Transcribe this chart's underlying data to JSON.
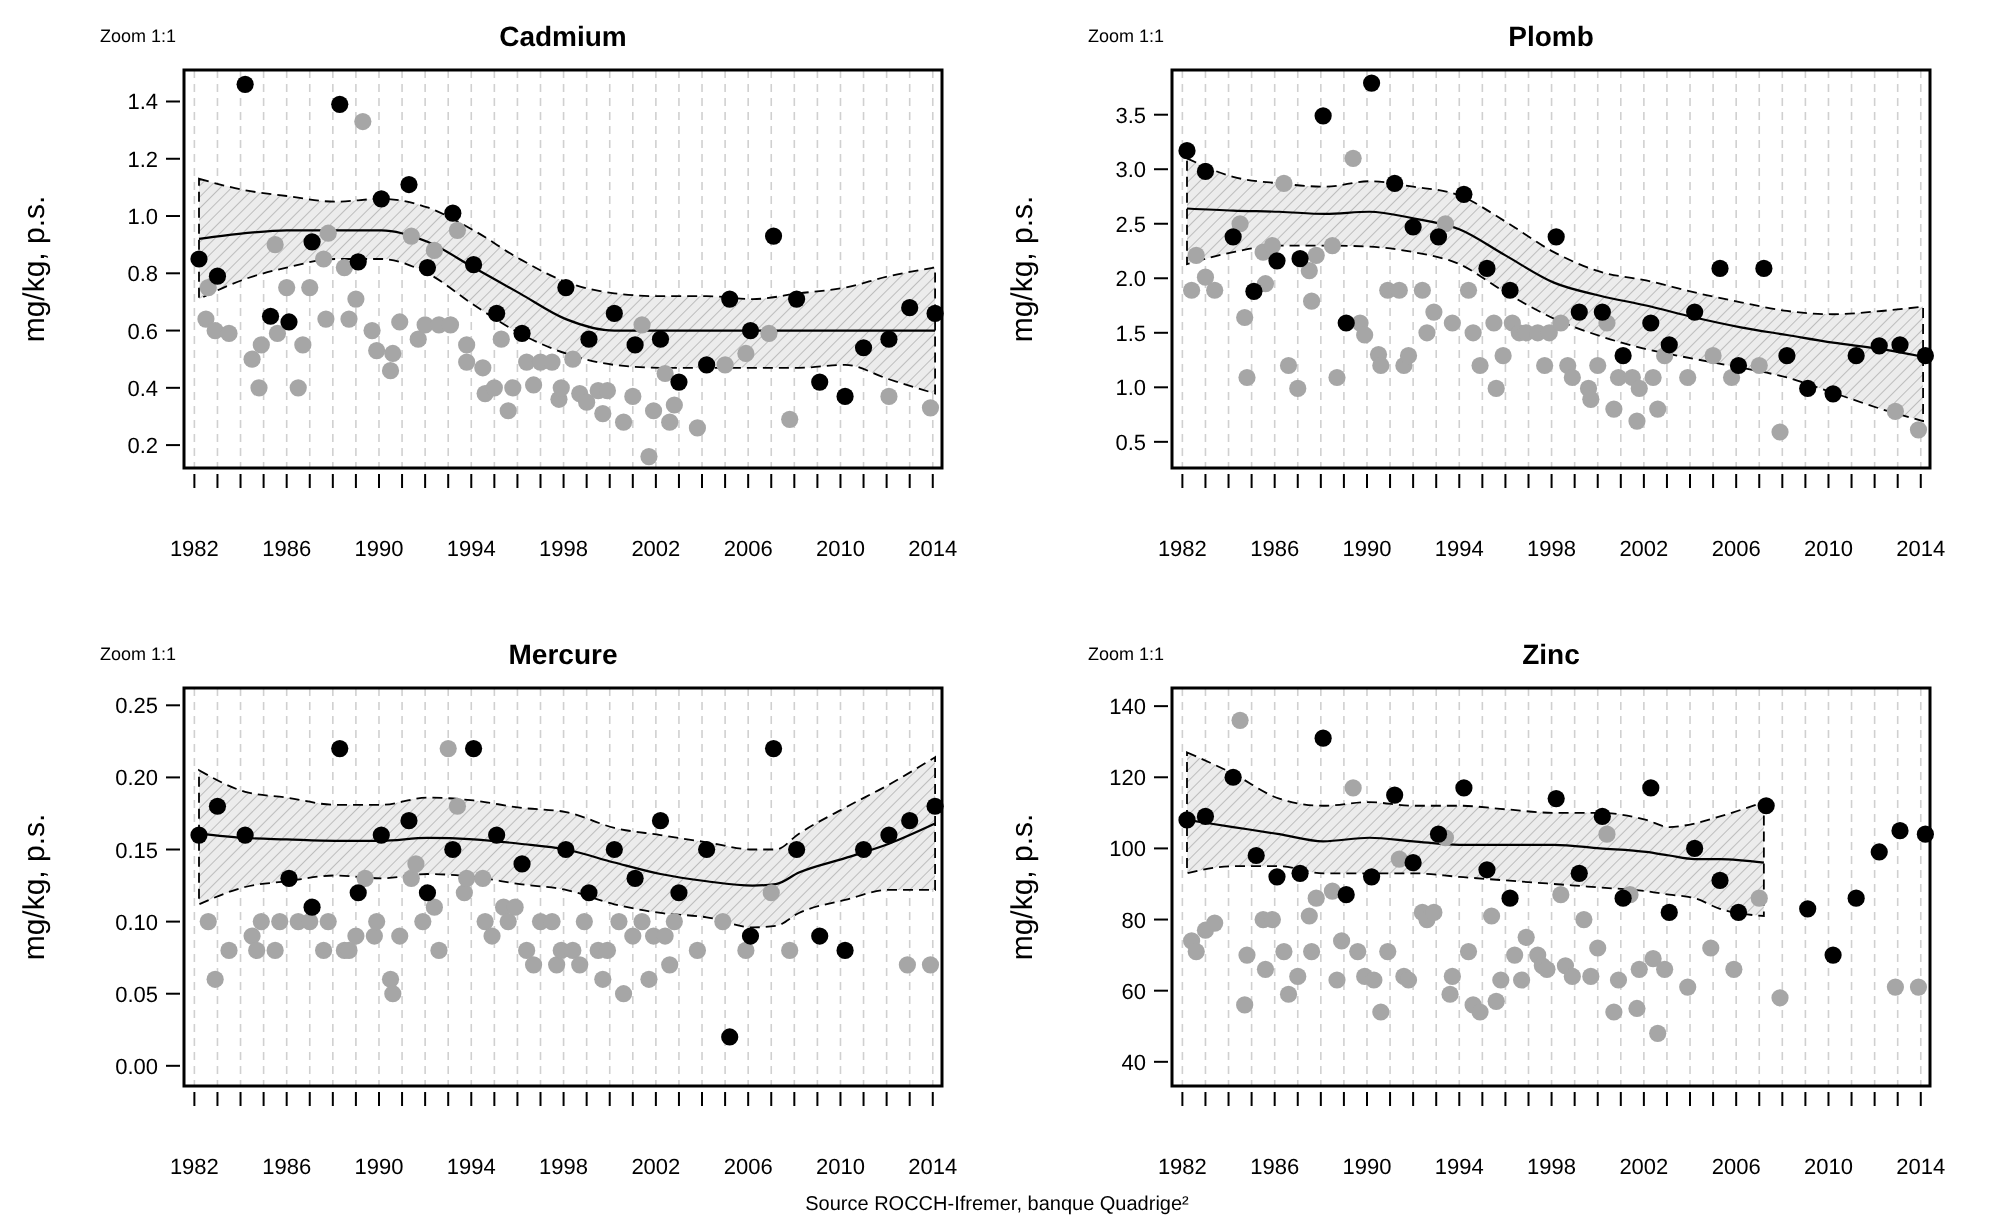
{
  "chart_data": [
    {
      "type": "scatter",
      "title": "Cadmium",
      "ylabel": "mg/kg, p.s.",
      "annotations": [
        "Zoom 1:1"
      ],
      "xlim": [
        1981.55,
        2014.4
      ],
      "ylim": [
        0.12,
        1.51
      ],
      "grid": "x",
      "marker": "circle",
      "xticks": [
        {
          "value": 1982,
          "label": "1982"
        },
        {
          "value": 1983,
          "label": null
        },
        {
          "value": 1984,
          "label": null
        },
        {
          "value": 1985,
          "label": null
        },
        {
          "value": 1986,
          "label": "1986"
        },
        {
          "value": 1987,
          "label": null
        },
        {
          "value": 1988,
          "label": null
        },
        {
          "value": 1989,
          "label": null
        },
        {
          "value": 1990,
          "label": "1990"
        },
        {
          "value": 1991,
          "label": null
        },
        {
          "value": 1992,
          "label": null
        },
        {
          "value": 1993,
          "label": null
        },
        {
          "value": 1994,
          "label": "1994"
        },
        {
          "value": 1995,
          "label": null
        },
        {
          "value": 1996,
          "label": null
        },
        {
          "value": 1997,
          "label": null
        },
        {
          "value": 1998,
          "label": "1998"
        },
        {
          "value": 1999,
          "label": null
        },
        {
          "value": 2000,
          "label": null
        },
        {
          "value": 2001,
          "label": null
        },
        {
          "value": 2002,
          "label": "2002"
        },
        {
          "value": 2003,
          "label": null
        },
        {
          "value": 2004,
          "label": null
        },
        {
          "value": 2005,
          "label": null
        },
        {
          "value": 2006,
          "label": "2006"
        },
        {
          "value": 2007,
          "label": null
        },
        {
          "value": 2008,
          "label": null
        },
        {
          "value": 2009,
          "label": null
        },
        {
          "value": 2010,
          "label": "2010"
        },
        {
          "value": 2011,
          "label": null
        },
        {
          "value": 2012,
          "label": null
        },
        {
          "value": 2013,
          "label": null
        },
        {
          "value": 2014,
          "label": "2014"
        }
      ],
      "yticks": [
        {
          "value": 0.2,
          "label": "0.2"
        },
        {
          "value": 0.4,
          "label": "0.4"
        },
        {
          "value": 0.6,
          "label": "0.6"
        },
        {
          "value": 0.8,
          "label": "0.8"
        },
        {
          "value": 1,
          "label": "1.0"
        },
        {
          "value": 1.2,
          "label": "1.2"
        },
        {
          "value": 1.4,
          "label": "1.4"
        }
      ],
      "series": [
        {
          "type": "line",
          "marker": "none",
          "color": "#000000",
          "x": [
            1982.2,
            1984.2,
            1986.0,
            1988.1,
            1990.1,
            1992.1,
            1994.1,
            1996.1,
            1998.1,
            2000.2,
            2002.2,
            2004.2,
            2006.2,
            2008.2,
            2010.2,
            2012.1,
            2014.1
          ],
          "values": [
            0.92,
            0.94,
            0.95,
            0.95,
            0.95,
            0.91,
            0.82,
            0.73,
            0.64,
            0.6,
            0.6,
            0.6,
            0.6,
            0.6,
            0.6,
            0.6,
            0.6
          ],
          "upper": [
            1.13,
            1.09,
            1.07,
            1.05,
            1.06,
            1.03,
            0.95,
            0.85,
            0.77,
            0.73,
            0.72,
            0.72,
            0.71,
            0.73,
            0.75,
            0.79,
            0.82
          ],
          "lower": [
            0.71,
            0.78,
            0.82,
            0.85,
            0.85,
            0.8,
            0.69,
            0.59,
            0.52,
            0.48,
            0.47,
            0.47,
            0.47,
            0.47,
            0.48,
            0.43,
            0.38
          ]
        },
        {
          "color": "#a6a6a6",
          "x": [
            1982.6,
            1982.5,
            1982.9,
            1983.5,
            1984.5,
            1984.9,
            1984.8,
            1985.5,
            1985.6,
            1986.0,
            1986.5,
            1986.7,
            1987.0,
            1987.6,
            1987.7,
            1987.8,
            1988.5,
            1988.7,
            1989.0,
            1989.3,
            1989.7,
            1989.9,
            1990.5,
            1990.6,
            1990.9,
            1991.4,
            1991.7,
            1992.0,
            1992.4,
            1992.6,
            1993.1,
            1993.4,
            1993.8,
            1993.8,
            1994.5,
            1994.6,
            1995.0,
            1995.3,
            1995.6,
            1995.8,
            1996.4,
            1996.7,
            1997.0,
            1997.5,
            1997.8,
            1997.9,
            1998.4,
            1998.7,
            1999.0,
            1999.5,
            1999.7,
            1999.9,
            2000.6,
            2001.0,
            2001.4,
            2001.7,
            2001.9,
            2002.4,
            2002.6,
            2002.8,
            2003.8,
            2005.0,
            2005.9,
            2006.9,
            2007.8,
            2012.1,
            2013.9
          ],
          "values": [
            0.75,
            0.64,
            0.6,
            0.59,
            0.5,
            0.55,
            0.4,
            0.9,
            0.59,
            0.75,
            0.4,
            0.55,
            0.75,
            0.85,
            0.64,
            0.94,
            0.82,
            0.64,
            0.71,
            1.33,
            0.6,
            0.53,
            0.46,
            0.52,
            0.63,
            0.93,
            0.57,
            0.62,
            0.88,
            0.62,
            0.62,
            0.95,
            0.55,
            0.49,
            0.47,
            0.38,
            0.4,
            0.57,
            0.32,
            0.4,
            0.49,
            0.41,
            0.49,
            0.49,
            0.36,
            0.4,
            0.5,
            0.38,
            0.35,
            0.39,
            0.31,
            0.39,
            0.28,
            0.37,
            0.62,
            0.16,
            0.32,
            0.45,
            0.28,
            0.34,
            0.26,
            0.48,
            0.52,
            0.59,
            0.29,
            0.37,
            0.33
          ]
        },
        {
          "color": "#000000",
          "x": [
            1982.2,
            1983.0,
            1984.2,
            1985.3,
            1986.1,
            1987.1,
            1988.3,
            1989.1,
            1990.1,
            1991.3,
            1992.1,
            1993.2,
            1994.1,
            1995.1,
            1996.2,
            1998.1,
            1999.1,
            2000.2,
            2001.1,
            2002.2,
            2003.0,
            2004.2,
            2005.2,
            2006.1,
            2007.1,
            2008.1,
            2009.1,
            2010.2,
            2011.0,
            2012.1,
            2013.0,
            2014.1
          ],
          "values": [
            0.85,
            0.79,
            1.46,
            0.65,
            0.63,
            0.91,
            1.39,
            0.84,
            1.06,
            1.11,
            0.82,
            1.01,
            0.83,
            0.66,
            0.59,
            0.75,
            0.57,
            0.66,
            0.55,
            0.57,
            0.42,
            0.48,
            0.71,
            0.6,
            0.93,
            0.71,
            0.42,
            0.37,
            0.54,
            0.57,
            0.68,
            0.66
          ]
        }
      ]
    },
    {
      "type": "scatter",
      "title": "Plomb",
      "ylabel": "mg/kg, p.s.",
      "annotations": [
        "Zoom 1:1"
      ],
      "xlim": [
        1981.55,
        2014.4
      ],
      "ylim": [
        0.26,
        3.91
      ],
      "grid": "x",
      "marker": "circle",
      "xticks": [
        {
          "value": 1982,
          "label": "1982"
        },
        {
          "value": 1983,
          "label": null
        },
        {
          "value": 1984,
          "label": null
        },
        {
          "value": 1985,
          "label": null
        },
        {
          "value": 1986,
          "label": "1986"
        },
        {
          "value": 1987,
          "label": null
        },
        {
          "value": 1988,
          "label": null
        },
        {
          "value": 1989,
          "label": null
        },
        {
          "value": 1990,
          "label": "1990"
        },
        {
          "value": 1991,
          "label": null
        },
        {
          "value": 1992,
          "label": null
        },
        {
          "value": 1993,
          "label": null
        },
        {
          "value": 1994,
          "label": "1994"
        },
        {
          "value": 1995,
          "label": null
        },
        {
          "value": 1996,
          "label": null
        },
        {
          "value": 1997,
          "label": null
        },
        {
          "value": 1998,
          "label": "1998"
        },
        {
          "value": 1999,
          "label": null
        },
        {
          "value": 2000,
          "label": null
        },
        {
          "value": 2001,
          "label": null
        },
        {
          "value": 2002,
          "label": "2002"
        },
        {
          "value": 2003,
          "label": null
        },
        {
          "value": 2004,
          "label": null
        },
        {
          "value": 2005,
          "label": null
        },
        {
          "value": 2006,
          "label": "2006"
        },
        {
          "value": 2007,
          "label": null
        },
        {
          "value": 2008,
          "label": null
        },
        {
          "value": 2009,
          "label": null
        },
        {
          "value": 2010,
          "label": "2010"
        },
        {
          "value": 2011,
          "label": null
        },
        {
          "value": 2012,
          "label": null
        },
        {
          "value": 2013,
          "label": null
        },
        {
          "value": 2014,
          "label": "2014"
        }
      ],
      "yticks": [
        {
          "value": 0.5,
          "label": "0.5"
        },
        {
          "value": 1,
          "label": "1.0"
        },
        {
          "value": 1.5,
          "label": "1.5"
        },
        {
          "value": 2,
          "label": "2.0"
        },
        {
          "value": 2.5,
          "label": "2.5"
        },
        {
          "value": 3,
          "label": "3.0"
        },
        {
          "value": 3.5,
          "label": "3.5"
        }
      ],
      "series": [
        {
          "type": "line",
          "marker": "none",
          "color": "#000000",
          "x": [
            1982.2,
            1984.2,
            1986.2,
            1988.2,
            1990.1,
            1992.0,
            1994.0,
            1996.0,
            1998.1,
            2000.1,
            2002.1,
            2004.2,
            2006.2,
            2008.2,
            2010.2,
            2012.3,
            2014.1
          ],
          "values": [
            2.64,
            2.62,
            2.61,
            2.59,
            2.61,
            2.55,
            2.45,
            2.21,
            1.96,
            1.84,
            1.75,
            1.64,
            1.55,
            1.48,
            1.41,
            1.35,
            1.28
          ],
          "upper": [
            3.1,
            2.93,
            2.87,
            2.84,
            2.89,
            2.84,
            2.76,
            2.52,
            2.24,
            2.06,
            1.98,
            1.87,
            1.78,
            1.7,
            1.67,
            1.7,
            1.74
          ],
          "lower": [
            2.13,
            2.24,
            2.3,
            2.3,
            2.29,
            2.24,
            2.13,
            1.87,
            1.63,
            1.47,
            1.35,
            1.26,
            1.18,
            1.09,
            0.95,
            0.8,
            0.69
          ]
        },
        {
          "color": "#a6a6a6",
          "x": [
            1982.4,
            1982.6,
            1983.0,
            1983.4,
            1984.5,
            1984.7,
            1984.8,
            1985.5,
            1985.6,
            1985.9,
            1986.4,
            1986.6,
            1987.0,
            1987.5,
            1987.6,
            1987.8,
            1988.5,
            1988.7,
            1989.4,
            1989.7,
            1989.9,
            1990.5,
            1990.6,
            1990.9,
            1991.4,
            1991.6,
            1991.8,
            1992.4,
            1992.6,
            1992.9,
            1993.4,
            1993.7,
            1994.4,
            1994.6,
            1994.9,
            1995.5,
            1995.6,
            1995.9,
            1996.3,
            1996.6,
            1996.9,
            1997.4,
            1997.7,
            1997.9,
            1998.4,
            1998.7,
            1998.9,
            1999.6,
            1999.7,
            2000.0,
            2000.4,
            2000.7,
            2000.9,
            2001.5,
            2001.8,
            2001.7,
            2002.4,
            2002.6,
            2002.9,
            2003.9,
            2005.0,
            2005.8,
            2007.0,
            2007.9,
            2012.9,
            2013.9
          ],
          "values": [
            1.89,
            2.21,
            2.01,
            1.89,
            2.5,
            1.64,
            1.09,
            2.24,
            1.95,
            2.3,
            2.87,
            1.2,
            0.99,
            2.07,
            1.79,
            2.21,
            2.3,
            1.09,
            3.1,
            1.59,
            1.48,
            1.3,
            1.2,
            1.89,
            1.89,
            1.2,
            1.29,
            1.89,
            1.5,
            1.69,
            2.5,
            1.59,
            1.89,
            1.5,
            1.2,
            1.59,
            0.99,
            1.29,
            1.59,
            1.5,
            1.5,
            1.5,
            1.2,
            1.5,
            1.59,
            1.2,
            1.09,
            0.99,
            0.89,
            1.2,
            1.59,
            0.8,
            1.09,
            1.09,
            0.99,
            0.69,
            1.09,
            0.8,
            1.29,
            1.09,
            1.29,
            1.09,
            1.2,
            0.59,
            0.78,
            0.61
          ]
        },
        {
          "color": "#000000",
          "x": [
            1982.2,
            1983.0,
            1984.2,
            1985.1,
            1986.1,
            1987.1,
            1988.1,
            1989.1,
            1990.2,
            1991.2,
            1992.0,
            1993.1,
            1994.2,
            1995.2,
            1996.2,
            1998.2,
            1999.2,
            2000.2,
            2001.1,
            2002.3,
            2003.1,
            2004.2,
            2005.3,
            2006.1,
            2007.2,
            2008.2,
            2009.1,
            2010.2,
            2011.2,
            2012.2,
            2013.1,
            2014.2
          ],
          "values": [
            3.17,
            2.98,
            2.38,
            1.88,
            2.16,
            2.18,
            3.49,
            1.59,
            3.79,
            2.87,
            2.47,
            2.38,
            2.77,
            2.09,
            1.89,
            2.38,
            1.69,
            1.69,
            1.29,
            1.59,
            1.39,
            1.69,
            2.09,
            1.2,
            2.09,
            1.29,
            0.99,
            0.94,
            1.29,
            1.38,
            1.39,
            1.29
          ]
        }
      ]
    },
    {
      "type": "scatter",
      "title": "Mercure",
      "ylabel": "mg/kg, p.s.",
      "annotations": [
        "Zoom 1:1"
      ],
      "xlim": [
        1981.55,
        2014.4
      ],
      "ylim": [
        -0.014,
        0.262
      ],
      "grid": "x",
      "marker": "circle",
      "xticks": [
        {
          "value": 1982,
          "label": "1982"
        },
        {
          "value": 1983,
          "label": null
        },
        {
          "value": 1984,
          "label": null
        },
        {
          "value": 1985,
          "label": null
        },
        {
          "value": 1986,
          "label": "1986"
        },
        {
          "value": 1987,
          "label": null
        },
        {
          "value": 1988,
          "label": null
        },
        {
          "value": 1989,
          "label": null
        },
        {
          "value": 1990,
          "label": "1990"
        },
        {
          "value": 1991,
          "label": null
        },
        {
          "value": 1992,
          "label": null
        },
        {
          "value": 1993,
          "label": null
        },
        {
          "value": 1994,
          "label": "1994"
        },
        {
          "value": 1995,
          "label": null
        },
        {
          "value": 1996,
          "label": null
        },
        {
          "value": 1997,
          "label": null
        },
        {
          "value": 1998,
          "label": "1998"
        },
        {
          "value": 1999,
          "label": null
        },
        {
          "value": 2000,
          "label": null
        },
        {
          "value": 2001,
          "label": null
        },
        {
          "value": 2002,
          "label": "2002"
        },
        {
          "value": 2003,
          "label": null
        },
        {
          "value": 2004,
          "label": null
        },
        {
          "value": 2005,
          "label": null
        },
        {
          "value": 2006,
          "label": "2006"
        },
        {
          "value": 2007,
          "label": null
        },
        {
          "value": 2008,
          "label": null
        },
        {
          "value": 2009,
          "label": null
        },
        {
          "value": 2010,
          "label": "2010"
        },
        {
          "value": 2011,
          "label": null
        },
        {
          "value": 2012,
          "label": null
        },
        {
          "value": 2013,
          "label": null
        },
        {
          "value": 2014,
          "label": "2014"
        }
      ],
      "yticks": [
        {
          "value": 0,
          "label": "0.00"
        },
        {
          "value": 0.05,
          "label": "0.05"
        },
        {
          "value": 0.1,
          "label": "0.10"
        },
        {
          "value": 0.15,
          "label": "0.15"
        },
        {
          "value": 0.2,
          "label": "0.20"
        },
        {
          "value": 0.25,
          "label": "0.25"
        }
      ],
      "series": [
        {
          "type": "line",
          "marker": "none",
          "color": "#000000",
          "x": [
            1982.2,
            1984.2,
            1986.0,
            1988.1,
            1990.1,
            1992.1,
            1994.1,
            1996.1,
            1998.1,
            2000.2,
            2002.2,
            2004.2,
            2006.2,
            2007.2,
            2008.2,
            2010.2,
            2012.1,
            2014.1
          ],
          "values": [
            0.161,
            0.158,
            0.157,
            0.156,
            0.156,
            0.158,
            0.157,
            0.154,
            0.15,
            0.141,
            0.133,
            0.128,
            0.125,
            0.126,
            0.134,
            0.144,
            0.154,
            0.168
          ],
          "upper": [
            0.205,
            0.19,
            0.186,
            0.181,
            0.181,
            0.186,
            0.184,
            0.179,
            0.176,
            0.165,
            0.16,
            0.155,
            0.15,
            0.15,
            0.161,
            0.179,
            0.195,
            0.214
          ],
          "lower": [
            0.112,
            0.124,
            0.128,
            0.132,
            0.13,
            0.133,
            0.131,
            0.126,
            0.122,
            0.112,
            0.106,
            0.103,
            0.096,
            0.097,
            0.106,
            0.115,
            0.122,
            0.122
          ]
        },
        {
          "color": "#a6a6a6",
          "x": [
            1982.6,
            1982.9,
            1983.5,
            1984.5,
            1984.7,
            1984.9,
            1985.5,
            1985.7,
            1986.5,
            1987.0,
            1987.6,
            1987.8,
            1988.5,
            1988.7,
            1989.0,
            1989.4,
            1989.8,
            1989.9,
            1990.5,
            1990.6,
            1990.9,
            1991.4,
            1991.6,
            1991.9,
            1992.4,
            1992.6,
            1993.0,
            1993.4,
            1993.7,
            1993.8,
            1994.5,
            1994.6,
            1994.9,
            1995.4,
            1995.6,
            1995.9,
            1996.4,
            1996.7,
            1997.0,
            1997.5,
            1997.7,
            1997.9,
            1998.4,
            1998.7,
            1998.9,
            1999.5,
            1999.7,
            1999.9,
            2000.4,
            2000.6,
            2001.0,
            2001.4,
            2001.7,
            2001.9,
            2002.4,
            2002.6,
            2002.8,
            2003.8,
            2004.9,
            2005.9,
            2007.0,
            2007.8,
            2012.9,
            2013.9
          ],
          "values": [
            0.1,
            0.06,
            0.08,
            0.09,
            0.08,
            0.1,
            0.08,
            0.1,
            0.1,
            0.1,
            0.08,
            0.1,
            0.08,
            0.08,
            0.09,
            0.13,
            0.09,
            0.1,
            0.06,
            0.05,
            0.09,
            0.13,
            0.14,
            0.1,
            0.11,
            0.08,
            0.22,
            0.18,
            0.12,
            0.13,
            0.13,
            0.1,
            0.09,
            0.11,
            0.1,
            0.11,
            0.08,
            0.07,
            0.1,
            0.1,
            0.07,
            0.08,
            0.08,
            0.07,
            0.1,
            0.08,
            0.06,
            0.08,
            0.1,
            0.05,
            0.09,
            0.1,
            0.06,
            0.09,
            0.09,
            0.07,
            0.1,
            0.08,
            0.1,
            0.08,
            0.12,
            0.08,
            0.07,
            0.07
          ]
        },
        {
          "color": "#000000",
          "x": [
            1982.2,
            1983.0,
            1984.2,
            1986.1,
            1987.1,
            1988.3,
            1989.1,
            1990.1,
            1991.3,
            1992.1,
            1993.2,
            1994.1,
            1995.1,
            1996.2,
            1998.1,
            1999.1,
            2000.2,
            2001.1,
            2002.2,
            2003.0,
            2004.2,
            2005.2,
            2006.1,
            2007.1,
            2008.1,
            2009.1,
            2010.2,
            2011.0,
            2012.1,
            2013.0,
            2014.1
          ],
          "values": [
            0.16,
            0.18,
            0.16,
            0.13,
            0.11,
            0.22,
            0.12,
            0.16,
            0.17,
            0.12,
            0.15,
            0.22,
            0.16,
            0.14,
            0.15,
            0.12,
            0.15,
            0.13,
            0.17,
            0.12,
            0.15,
            0.02,
            0.09,
            0.22,
            0.15,
            0.09,
            0.08,
            0.15,
            0.16,
            0.17,
            0.18
          ]
        }
      ]
    },
    {
      "type": "scatter",
      "title": "Zinc",
      "ylabel": "mg/kg, p.s.",
      "annotations": [
        "Zoom 1:1",
        "Source ROCCH-Ifremer, banque Quadrige²"
      ],
      "xlim": [
        1981.55,
        2014.4
      ],
      "ylim": [
        33.2,
        145.1
      ],
      "grid": "x",
      "marker": "circle",
      "xticks": [
        {
          "value": 1982,
          "label": "1982"
        },
        {
          "value": 1983,
          "label": null
        },
        {
          "value": 1984,
          "label": null
        },
        {
          "value": 1985,
          "label": null
        },
        {
          "value": 1986,
          "label": "1986"
        },
        {
          "value": 1987,
          "label": null
        },
        {
          "value": 1988,
          "label": null
        },
        {
          "value": 1989,
          "label": null
        },
        {
          "value": 1990,
          "label": "1990"
        },
        {
          "value": 1991,
          "label": null
        },
        {
          "value": 1992,
          "label": null
        },
        {
          "value": 1993,
          "label": null
        },
        {
          "value": 1994,
          "label": "1994"
        },
        {
          "value": 1995,
          "label": null
        },
        {
          "value": 1996,
          "label": null
        },
        {
          "value": 1997,
          "label": null
        },
        {
          "value": 1998,
          "label": "1998"
        },
        {
          "value": 1999,
          "label": null
        },
        {
          "value": 2000,
          "label": null
        },
        {
          "value": 2001,
          "label": null
        },
        {
          "value": 2002,
          "label": "2002"
        },
        {
          "value": 2003,
          "label": null
        },
        {
          "value": 2004,
          "label": null
        },
        {
          "value": 2005,
          "label": null
        },
        {
          "value": 2006,
          "label": "2006"
        },
        {
          "value": 2007,
          "label": null
        },
        {
          "value": 2008,
          "label": null
        },
        {
          "value": 2009,
          "label": null
        },
        {
          "value": 2010,
          "label": "2010"
        },
        {
          "value": 2011,
          "label": null
        },
        {
          "value": 2012,
          "label": null
        },
        {
          "value": 2013,
          "label": null
        },
        {
          "value": 2014,
          "label": "2014"
        }
      ],
      "yticks": [
        40,
        60,
        80,
        100,
        120,
        140
      ],
      "series": [
        {
          "type": "line",
          "marker": "none",
          "color": "#000000",
          "x": [
            1982.2,
            1984.2,
            1986.2,
            1988.1,
            1990.1,
            1992.0,
            1994.0,
            1996.0,
            1998.1,
            2000.1,
            2002.1,
            2003.1,
            2004.2,
            2005.3,
            2007.2
          ],
          "values": [
            108,
            106,
            104,
            102,
            103,
            102,
            101,
            101,
            101,
            100,
            99,
            98,
            97,
            97,
            96
          ],
          "upper": [
            127,
            121,
            114,
            112,
            113,
            112,
            112,
            111,
            110,
            110,
            108,
            106,
            107,
            109,
            113
          ],
          "lower": [
            93,
            95,
            95,
            93,
            93,
            93,
            92,
            91,
            90,
            89,
            88,
            87,
            86,
            83,
            81
          ]
        },
        {
          "color": "#a6a6a6",
          "x": [
            1982.4,
            1982.6,
            1983.0,
            1983.4,
            1984.5,
            1984.8,
            1984.7,
            1985.5,
            1985.6,
            1985.9,
            1986.4,
            1986.6,
            1987.0,
            1987.5,
            1987.6,
            1987.8,
            1988.5,
            1988.7,
            1988.9,
            1989.4,
            1989.6,
            1989.9,
            1990.3,
            1990.6,
            1990.9,
            1991.4,
            1991.6,
            1991.8,
            1992.4,
            1992.6,
            1992.9,
            1993.4,
            1993.6,
            1993.7,
            1994.4,
            1994.6,
            1994.9,
            1995.4,
            1995.6,
            1995.8,
            1996.4,
            1996.7,
            1996.9,
            1997.4,
            1997.6,
            1997.8,
            1998.4,
            1998.6,
            1998.9,
            1999.4,
            1999.7,
            2000.0,
            2000.4,
            2000.7,
            2000.9,
            2001.4,
            2001.7,
            2001.8,
            2002.4,
            2002.6,
            2002.9,
            2003.9,
            2004.9,
            2005.9,
            2007.0,
            2007.9,
            2012.9,
            2013.9
          ],
          "values": [
            74,
            71,
            77,
            79,
            136,
            70,
            56,
            80,
            66,
            80,
            71,
            59,
            64,
            81,
            71,
            86,
            88,
            63,
            74,
            117,
            71,
            64,
            63,
            54,
            71,
            97,
            64,
            63,
            82,
            80,
            82,
            103,
            59,
            64,
            71,
            56,
            54,
            81,
            57,
            63,
            70,
            63,
            75,
            70,
            67,
            66,
            87,
            67,
            64,
            80,
            64,
            72,
            104,
            54,
            63,
            87,
            55,
            66,
            69,
            48,
            66,
            61,
            72,
            66,
            86,
            58,
            61,
            61
          ]
        },
        {
          "color": "#000000",
          "x": [
            1982.2,
            1983.0,
            1984.2,
            1985.2,
            1986.1,
            1987.1,
            1988.1,
            1989.1,
            1990.2,
            1991.2,
            1992.0,
            1993.1,
            1994.2,
            1995.2,
            1996.2,
            1998.2,
            1999.2,
            2000.2,
            2001.1,
            2002.3,
            2003.1,
            2004.2,
            2005.3,
            2006.1,
            2007.3,
            2009.1,
            2010.2,
            2011.2,
            2012.2,
            2013.1,
            2014.2
          ],
          "values": [
            108,
            109,
            120,
            98,
            92,
            93,
            131,
            87,
            92,
            115,
            96,
            104,
            117,
            94,
            86,
            114,
            93,
            109,
            86,
            117,
            82,
            100,
            91,
            82,
            112,
            83,
            70,
            86,
            99,
            105,
            104
          ]
        }
      ]
    }
  ]
}
